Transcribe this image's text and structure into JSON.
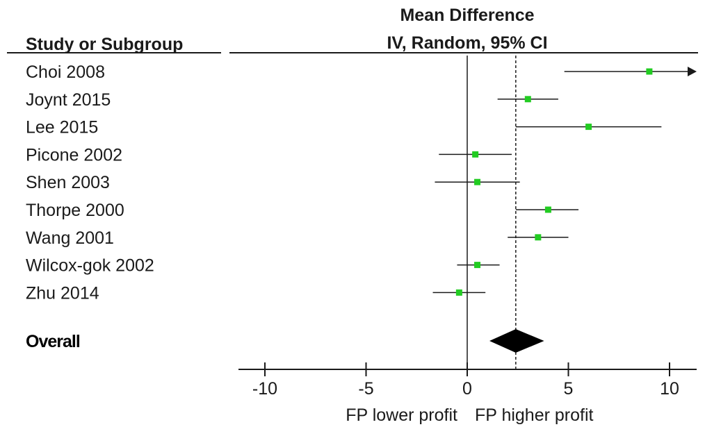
{
  "chart_data": {
    "type": "forest",
    "header": {
      "study_label": "Study or Subgroup",
      "effect_line1": "Mean Difference",
      "effect_line2": "IV, Random, 95% CI"
    },
    "studies": [
      {
        "name": "Choi 2008",
        "mean": 9.0,
        "lower": 4.8,
        "upper": 11.3,
        "arrow_right": true
      },
      {
        "name": "Joynt 2015",
        "mean": 3.0,
        "lower": 1.5,
        "upper": 4.5
      },
      {
        "name": "Lee 2015",
        "mean": 6.0,
        "lower": 2.4,
        "upper": 9.6
      },
      {
        "name": "Picone 2002",
        "mean": 0.4,
        "lower": -1.4,
        "upper": 2.2
      },
      {
        "name": "Shen 2003",
        "mean": 0.5,
        "lower": -1.6,
        "upper": 2.6
      },
      {
        "name": "Thorpe 2000",
        "mean": 4.0,
        "lower": 2.4,
        "upper": 5.5
      },
      {
        "name": "Wang 2001",
        "mean": 3.5,
        "lower": 2.0,
        "upper": 5.0
      },
      {
        "name": "Wilcox-gok 2002",
        "mean": 0.5,
        "lower": -0.5,
        "upper": 1.6
      },
      {
        "name": "Zhu 2014",
        "mean": -0.4,
        "lower": -1.7,
        "upper": 0.9
      }
    ],
    "overall": {
      "label": "Overall",
      "mean": 2.4,
      "lower": 1.1,
      "upper": 3.8
    },
    "xaxis": {
      "min": -11.2,
      "max": 11.2,
      "ticks": [
        -10,
        -5,
        0,
        5,
        10
      ],
      "tick_labels": [
        "-10",
        "-5",
        "0",
        "5",
        "10"
      ]
    },
    "direction_labels": {
      "left": "FP lower profit",
      "right": "FP higher profit"
    },
    "reference_line": 0,
    "pooled_line_style": "dashed",
    "colors": {
      "marker": "#22cc22",
      "line": "#1a1a1a",
      "diamond": "#000000"
    }
  }
}
